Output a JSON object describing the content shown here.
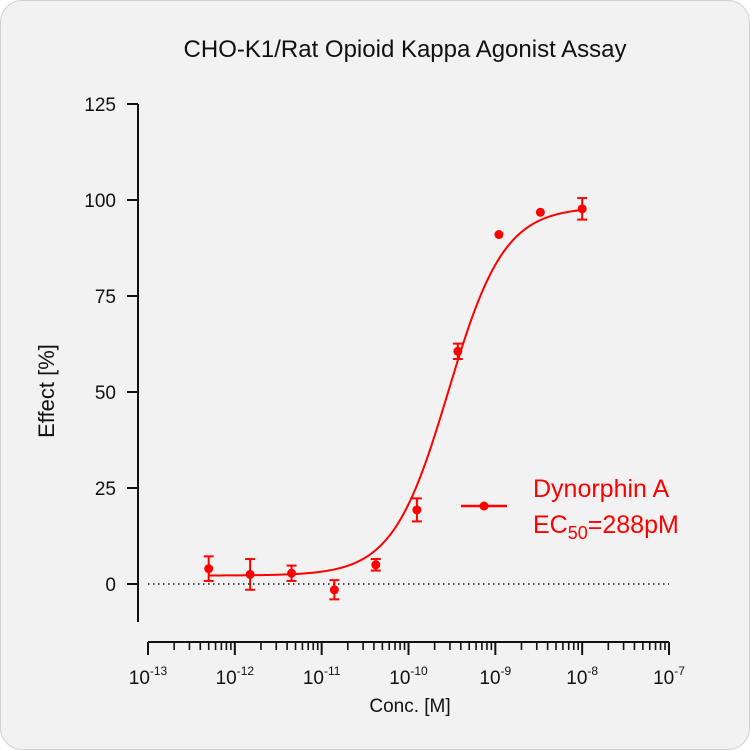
{
  "chart_data": {
    "type": "scatter",
    "title": "CHO-K1/Rat Opioid Kappa Agonist Assay",
    "xlabel": "Conc. [M]",
    "ylabel": "Effect  [%]",
    "x_scale": "log",
    "xlim": [
      1e-13,
      1e-07
    ],
    "ylim": [
      -10,
      125
    ],
    "y_ticks": [
      "0",
      "25",
      "50",
      "75",
      "100",
      "125"
    ],
    "x_ticks": [
      {
        "base": "10",
        "exp": "-13"
      },
      {
        "base": "10",
        "exp": "-12"
      },
      {
        "base": "10",
        "exp": "-11"
      },
      {
        "base": "10",
        "exp": "-10"
      },
      {
        "base": "10",
        "exp": "-9"
      },
      {
        "base": "10",
        "exp": "-8"
      },
      {
        "base": "10",
        "exp": "-7"
      }
    ],
    "baseline": 0,
    "grid": false,
    "legend_position": "right",
    "series": [
      {
        "name": "Dynorphin A",
        "annotation_prefix": "EC",
        "annotation_sub": "50",
        "annotation_value": "=288pM",
        "color": "#ff0000",
        "fit": {
          "bottom": 2.2,
          "top": 98.2,
          "ec50": 2.88e-10,
          "hill": 1.35
        },
        "points": [
          {
            "x": 5e-13,
            "y": 4.0,
            "err": 3.2
          },
          {
            "x": 1.5e-12,
            "y": 2.5,
            "err": 4.0
          },
          {
            "x": 4.5e-12,
            "y": 2.8,
            "err": 2.0
          },
          {
            "x": 1.4e-11,
            "y": -1.5,
            "err": 2.5
          },
          {
            "x": 4.2e-11,
            "y": 5.0,
            "err": 1.5
          },
          {
            "x": 1.25e-10,
            "y": 19.3,
            "err": 3.0
          },
          {
            "x": 3.7e-10,
            "y": 60.6,
            "err": 2.0
          },
          {
            "x": 1.1e-09,
            "y": 91.0,
            "err": 0.5
          },
          {
            "x": 3.3e-09,
            "y": 96.8,
            "err": 0.5
          },
          {
            "x": 1e-08,
            "y": 97.7,
            "err": 2.8
          }
        ]
      }
    ]
  }
}
